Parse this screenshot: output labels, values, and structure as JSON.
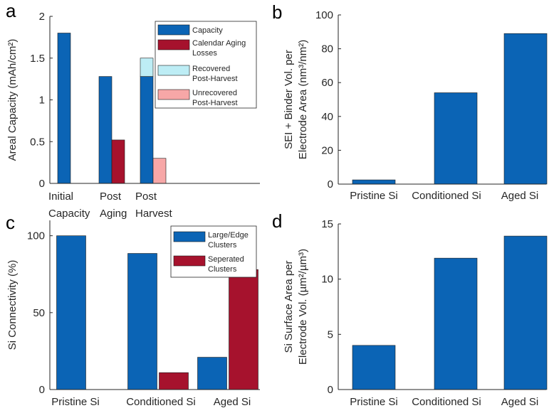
{
  "colors": {
    "blue": "#0B64B5",
    "red": "#A6122D",
    "light_blue": "#BDEDF5",
    "pink": "#F7A7A7",
    "axis": "#262626"
  },
  "chart_data": [
    {
      "id": "a",
      "panel_label": "a",
      "type": "bar",
      "categories": [
        "Initial Capacity",
        "Post Aging",
        "Post Harvest"
      ],
      "tick_lines": [
        [
          "Initial",
          "Capacity"
        ],
        [
          "Post",
          "Aging"
        ],
        [
          "Post",
          "Harvest"
        ]
      ],
      "ylabel_lines": [
        "Areal Capacity (mAh/cm²)"
      ],
      "ylim": [
        0,
        2
      ],
      "yticks": [
        0,
        0.5,
        1,
        1.5,
        2
      ],
      "ytick_labels": [
        "0",
        "0.5",
        "1",
        "1.5",
        "2"
      ],
      "series": [
        {
          "name": "Capacity",
          "legend_lines": [
            "Capacity"
          ],
          "color": "#0B64B5",
          "values": [
            1.8,
            1.28,
            1.28
          ]
        },
        {
          "name": "Calendar Aging Losses",
          "legend_lines": [
            "Calendar Aging",
            "Losses"
          ],
          "color": "#A6122D",
          "values": [
            0,
            0.52,
            null
          ]
        },
        {
          "name": "Recovered Post-Harvest",
          "legend_lines": [
            "Recovered",
            "Post-Harvest"
          ],
          "color": "#BDEDF5",
          "values": [
            null,
            null,
            0.22
          ],
          "stacked_on": "Capacity"
        },
        {
          "name": "Unrecovered Post-Harvest",
          "legend_lines": [
            "Unrecovered",
            "Post-Harvest"
          ],
          "color": "#F7A7A7",
          "values": [
            null,
            null,
            0.3
          ]
        }
      ],
      "legend": "top-right"
    },
    {
      "id": "b",
      "panel_label": "b",
      "type": "bar",
      "categories": [
        "Pristine Si",
        "Conditioned Si",
        "Aged Si"
      ],
      "ylabel_lines": [
        "SEI + Binder Vol. per",
        "Electrode Area (nm³/nm²)"
      ],
      "ylim": [
        0,
        100
      ],
      "yticks": [
        0,
        20,
        40,
        60,
        80,
        100
      ],
      "ytick_labels": [
        "0",
        "20",
        "40",
        "60",
        "80",
        "100"
      ],
      "series": [
        {
          "name": "SEI + Binder Vol.",
          "color": "#0B64B5",
          "values": [
            2.5,
            54,
            89
          ]
        }
      ]
    },
    {
      "id": "c",
      "panel_label": "c",
      "type": "bar",
      "categories": [
        "Pristine Si",
        "Conditioned Si",
        "Aged Si"
      ],
      "ylabel_lines": [
        "Si Connectivity (%)"
      ],
      "ylim": [
        0,
        110
      ],
      "yticks": [
        0,
        50,
        100
      ],
      "ytick_labels": [
        "0",
        "50",
        "100"
      ],
      "series": [
        {
          "name": "Large/Edge Clusters",
          "legend_lines": [
            "Large/Edge",
            "Clusters"
          ],
          "color": "#0B64B5",
          "values": [
            100,
            88.5,
            21
          ]
        },
        {
          "name": "Seperated Clusters",
          "legend_lines": [
            "Seperated",
            "Clusters"
          ],
          "color": "#A6122D",
          "values": [
            0,
            11,
            78
          ]
        }
      ],
      "legend": "top-right"
    },
    {
      "id": "d",
      "panel_label": "d",
      "type": "bar",
      "categories": [
        "Pristine Si",
        "Conditioned Si",
        "Aged Si"
      ],
      "ylabel_lines": [
        "Si Surface Area per",
        "Electrode Vol. (µm²/µm³)"
      ],
      "ylim": [
        0,
        15
      ],
      "yticks": [
        0,
        5,
        10,
        15
      ],
      "ytick_labels": [
        "0",
        "5",
        "10",
        "15"
      ],
      "series": [
        {
          "name": "Si Surface Area",
          "color": "#0B64B5",
          "values": [
            4,
            11.9,
            13.9
          ]
        }
      ]
    }
  ]
}
